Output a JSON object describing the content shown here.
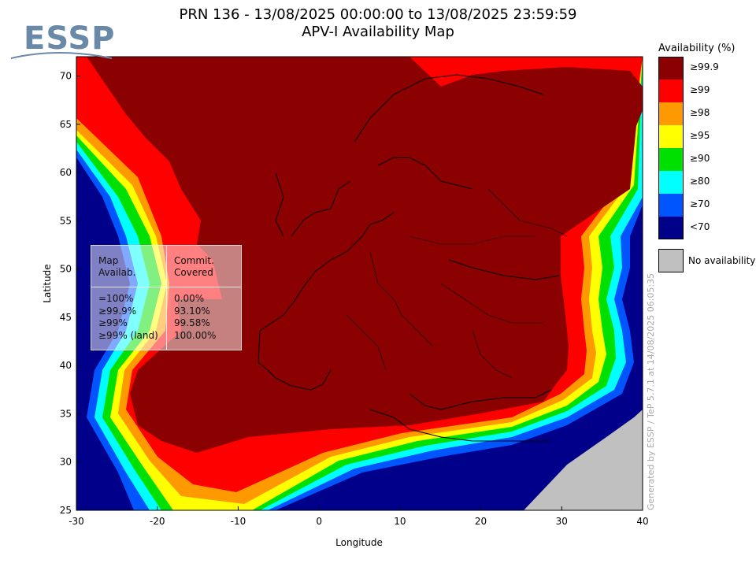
{
  "logo": {
    "text": "ESSP"
  },
  "title": {
    "line1": "PRN 136 - 13/08/2025 00:00:00 to 13/08/2025 23:59:59",
    "line2": "APV-I Availability Map"
  },
  "colors": {
    "ge99_9": "#8b0000",
    "ge99": "#ff0000",
    "ge98": "#ff9900",
    "ge95": "#ffff00",
    "ge90": "#00e000",
    "ge80": "#00ffff",
    "ge70": "#0055ff",
    "lt70": "#00008b",
    "no_availability": "#c0c0c0"
  },
  "legend": {
    "title": "Availability (%)",
    "items": [
      {
        "label": "≥99.9",
        "color": "#8b0000"
      },
      {
        "label": "≥99",
        "color": "#ff0000"
      },
      {
        "label": "≥98",
        "color": "#ff9900"
      },
      {
        "label": "≥95",
        "color": "#ffff00"
      },
      {
        "label": "≥90",
        "color": "#00e000"
      },
      {
        "label": "≥80",
        "color": "#00ffff"
      },
      {
        "label": "≥70",
        "color": "#0055ff"
      },
      {
        "label": "<70",
        "color": "#00008b"
      }
    ],
    "no_availability_label": "No availability"
  },
  "stats": {
    "header_col1": [
      "Map",
      "Availab."
    ],
    "header_col2": [
      "Commit.",
      "Covered"
    ],
    "rows": [
      {
        "level": "=100%",
        "covered": "0.00%"
      },
      {
        "level": "≥99.9%",
        "covered": "93.10%"
      },
      {
        "level": "≥99%",
        "covered": "99.58%"
      },
      {
        "level": "≥99% (land)",
        "covered": "100.00%"
      }
    ]
  },
  "footer": "Generated by ESSP / TeP 5.7.1 at 14/08/2025 06:05:35",
  "chart_data": {
    "type": "heatmap",
    "title": "PRN 136 - 13/08/2025 00:00:00 to 13/08/2025 23:59:59 APV-I Availability Map",
    "xlabel": "Longitude",
    "ylabel": "Latitude",
    "xlim": [
      -30,
      40
    ],
    "ylim": [
      25,
      72
    ],
    "x_ticks": [
      -30,
      -20,
      -10,
      0,
      10,
      20,
      30,
      40
    ],
    "y_ticks": [
      25,
      30,
      35,
      40,
      45,
      50,
      55,
      60,
      65,
      70
    ],
    "x_tick_labels": [
      "-30",
      "-20",
      "-10",
      "0",
      "10",
      "20",
      "30",
      "40"
    ],
    "y_tick_labels": [
      "25",
      "30",
      "35",
      "40",
      "45",
      "50",
      "55",
      "60",
      "65",
      "70"
    ],
    "legend_position": "right",
    "categories": [
      "≥99.9",
      "≥99",
      "≥98",
      "≥95",
      "≥90",
      "≥80",
      "≥70",
      "<70",
      "No availability"
    ]
  }
}
